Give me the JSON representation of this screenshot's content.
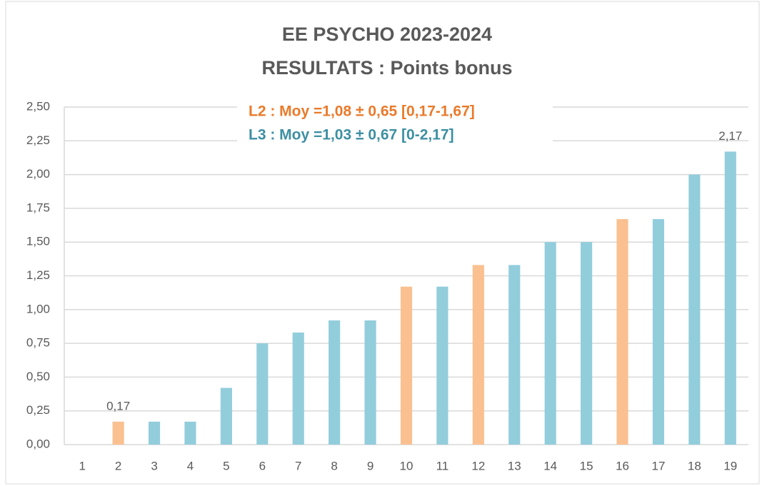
{
  "chart_data": {
    "type": "bar",
    "title": [
      "EE PSYCHO 2023-2024",
      "RESULTATS : Points bonus"
    ],
    "annotations": [
      {
        "text": "L2 : Moy =1,08 ± 0,65 [0,17-1,67]",
        "color": "#e97a2a"
      },
      {
        "text": "L3 : Moy =1,03 ± 0,67 [0-2,17]",
        "color": "#3d8fa3"
      }
    ],
    "categories": [
      "1",
      "2",
      "3",
      "4",
      "5",
      "6",
      "7",
      "8",
      "9",
      "10",
      "11",
      "12",
      "13",
      "14",
      "15",
      "16",
      "17",
      "18",
      "19"
    ],
    "values": [
      0,
      0.17,
      0.17,
      0.17,
      0.42,
      0.75,
      0.83,
      0.92,
      0.92,
      1.17,
      1.17,
      1.33,
      1.33,
      1.5,
      1.5,
      1.67,
      1.67,
      2.0,
      2.17
    ],
    "value_labels": [
      null,
      "0,17",
      null,
      null,
      null,
      null,
      null,
      null,
      null,
      null,
      null,
      null,
      null,
      null,
      null,
      null,
      null,
      null,
      "2,17"
    ],
    "colors": [
      "#92cddc",
      "#fac090",
      "#92cddc",
      "#92cddc",
      "#92cddc",
      "#92cddc",
      "#92cddc",
      "#92cddc",
      "#92cddc",
      "#fac090",
      "#92cddc",
      "#fac090",
      "#92cddc",
      "#92cddc",
      "#92cddc",
      "#fac090",
      "#92cddc",
      "#92cddc",
      "#92cddc"
    ],
    "ylim": [
      0,
      2.5
    ],
    "yticks": [
      {
        "value": 0,
        "label": "0,00"
      },
      {
        "value": 0.25,
        "label": "0,25"
      },
      {
        "value": 0.5,
        "label": "0,50"
      },
      {
        "value": 0.75,
        "label": "0,75"
      },
      {
        "value": 1,
        "label": "1,00"
      },
      {
        "value": 1.25,
        "label": "1,25"
      },
      {
        "value": 1.5,
        "label": "1,50"
      },
      {
        "value": 1.75,
        "label": "1,75"
      },
      {
        "value": 2,
        "label": "2,00"
      },
      {
        "value": 2.25,
        "label": "2,25"
      },
      {
        "value": 2.5,
        "label": "2,50"
      }
    ],
    "grid": true
  }
}
